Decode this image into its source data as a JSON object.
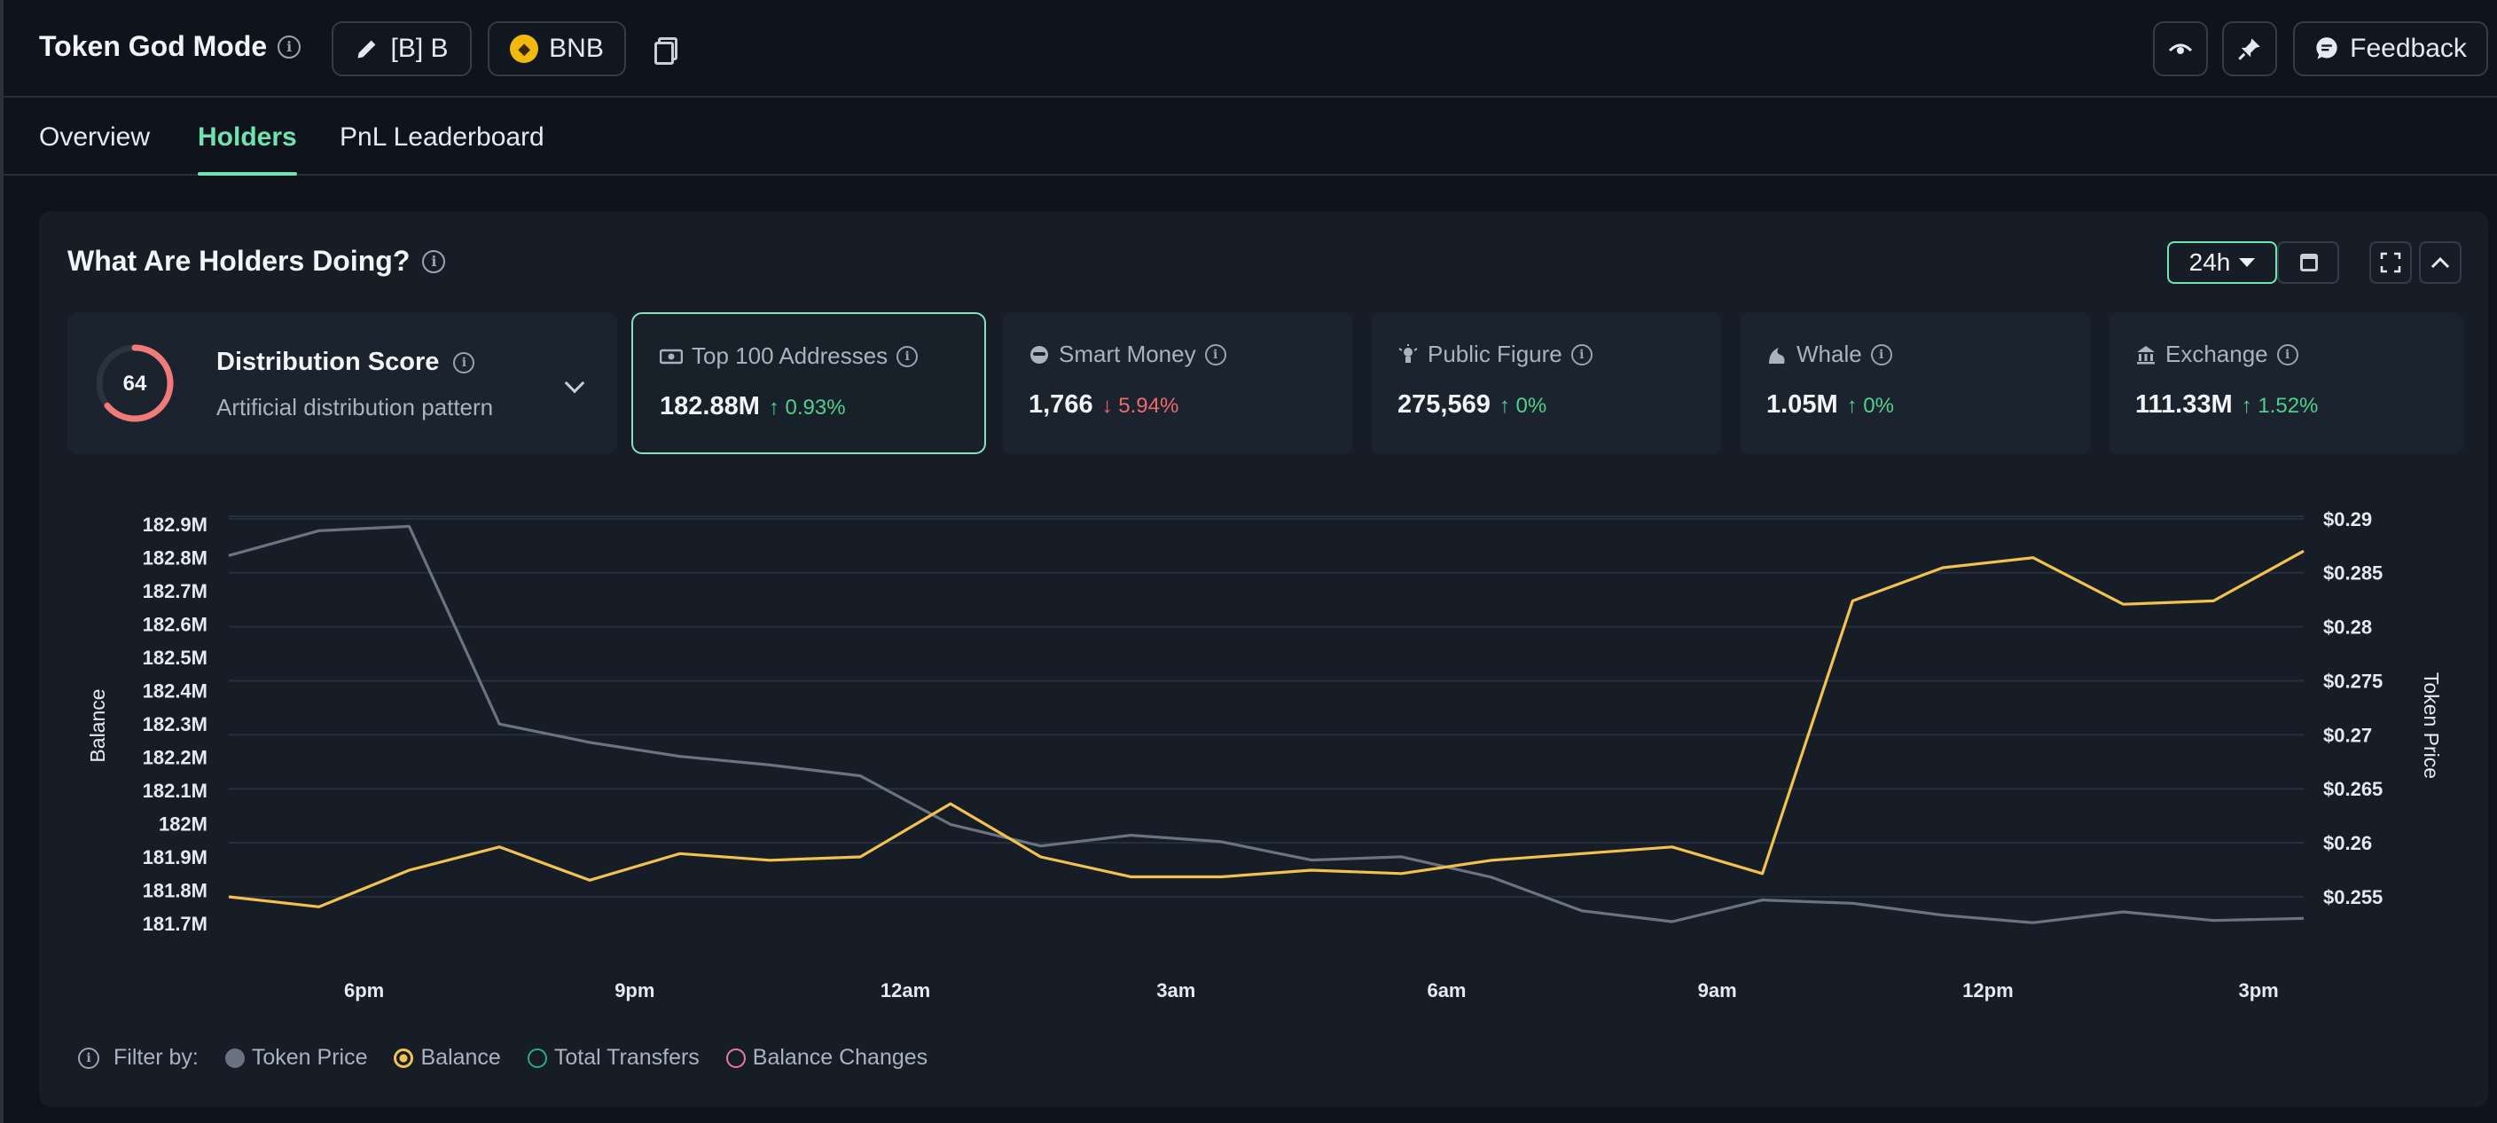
{
  "header": {
    "title": "Token God Mode",
    "token_button": "[B] B",
    "chain_button": "BNB",
    "feedback_label": "Feedback"
  },
  "tabs": [
    {
      "label": "Overview"
    },
    {
      "label": "Holders"
    },
    {
      "label": "PnL Leaderboard"
    }
  ],
  "panel": {
    "title": "What Are Holders Doing?",
    "range": "24h"
  },
  "distribution": {
    "score": "64",
    "score_value": 64,
    "title": "Distribution Score",
    "subtitle": "Artificial distribution pattern"
  },
  "cards": [
    {
      "label": "Top 100 Addresses",
      "value": "182.88M",
      "change": "0.93%",
      "direction": "up"
    },
    {
      "label": "Smart Money",
      "value": "1,766",
      "change": "5.94%",
      "direction": "down"
    },
    {
      "label": "Public Figure",
      "value": "275,569",
      "change": "0%",
      "direction": "up"
    },
    {
      "label": "Whale",
      "value": "1.05M",
      "change": "0%",
      "direction": "up"
    },
    {
      "label": "Exchange",
      "value": "111.33M",
      "change": "1.52%",
      "direction": "up"
    }
  ],
  "legend": {
    "filter_label": "Filter by:",
    "items": [
      "Token Price",
      "Balance",
      "Total Transfers",
      "Balance Changes"
    ]
  },
  "colors": {
    "accent": "#6fe3b0",
    "balance": "#f2c14e",
    "price": "#6b7380",
    "transfers": "#2fa88a",
    "balance_changes": "#e879a8"
  },
  "chart_data": {
    "type": "line",
    "x": [
      0,
      1,
      2,
      3,
      4,
      5,
      6,
      7,
      8,
      9,
      10,
      11,
      12,
      13,
      14,
      15,
      16,
      17,
      18,
      19,
      20,
      21,
      22,
      23
    ],
    "xtick_labels": [
      "6pm",
      "9pm",
      "12am",
      "3am",
      "6am",
      "9am",
      "12pm",
      "3pm"
    ],
    "xtick_positions": [
      1.5,
      4.5,
      7.5,
      10.5,
      13.5,
      16.5,
      19.5,
      22.5
    ],
    "ylabel": "Balance",
    "y2label": "Token Price",
    "ylim": [
      181.66,
      182.93
    ],
    "y2lim": [
      0.2513,
      0.2904
    ],
    "yticks": [
      181.7,
      181.8,
      181.9,
      182.0,
      182.1,
      182.2,
      182.3,
      182.4,
      182.5,
      182.6,
      182.7,
      182.8,
      182.9
    ],
    "ytick_labels": [
      "181.7M",
      "181.8M",
      "181.9M",
      "182M",
      "182.1M",
      "182.2M",
      "182.3M",
      "182.4M",
      "182.5M",
      "182.6M",
      "182.7M",
      "182.8M",
      "182.9M"
    ],
    "y2ticks": [
      0.255,
      0.26,
      0.265,
      0.27,
      0.275,
      0.28,
      0.285,
      0.29
    ],
    "y2tick_labels": [
      "$0.255",
      "$0.26",
      "$0.265",
      "$0.27",
      "$0.275",
      "$0.28",
      "$0.285",
      "$0.29"
    ],
    "series": [
      {
        "name": "Balance",
        "axis": "left",
        "values": [
          181.78,
          181.75,
          181.86,
          181.93,
          181.83,
          181.91,
          181.89,
          181.9,
          182.06,
          181.9,
          181.84,
          181.84,
          181.86,
          181.85,
          181.89,
          181.91,
          181.93,
          181.85,
          182.67,
          182.77,
          182.8,
          182.66,
          182.67,
          182.82
        ]
      },
      {
        "name": "Token Price",
        "axis": "right",
        "values": [
          0.2866,
          0.2889,
          0.2893,
          0.271,
          0.2693,
          0.268,
          0.2672,
          0.2662,
          0.2617,
          0.2597,
          0.2607,
          0.2601,
          0.2584,
          0.2587,
          0.2568,
          0.2537,
          0.2527,
          0.2547,
          0.2544,
          0.2533,
          0.2526,
          0.2536,
          0.2528,
          0.253
        ]
      }
    ]
  }
}
